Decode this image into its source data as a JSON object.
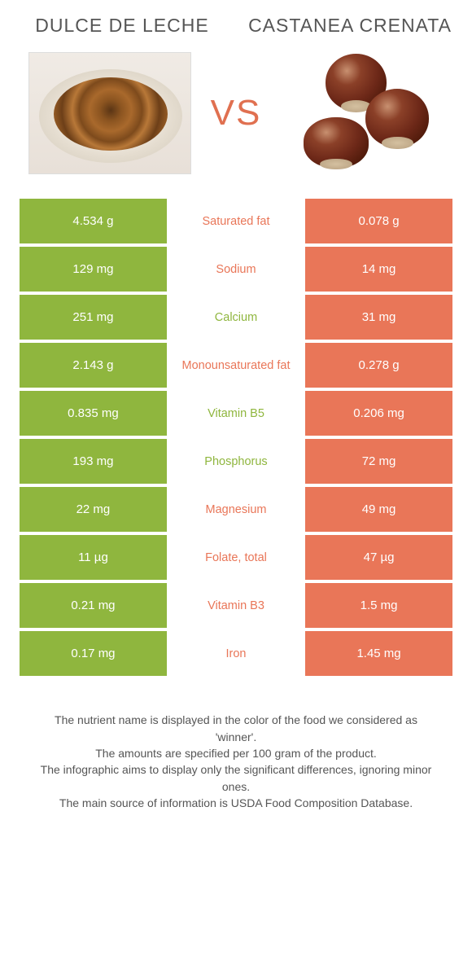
{
  "colors": {
    "green": "#8fb63e",
    "coral": "#e97658",
    "vs": "#e07050"
  },
  "header": {
    "left": "DULCE DE LECHE",
    "right": "CASTANEA CRENATA",
    "vs": "VS"
  },
  "rows": [
    {
      "left": "4.534 g",
      "label": "Saturated fat",
      "right": "0.078 g",
      "winner": "right"
    },
    {
      "left": "129 mg",
      "label": "Sodium",
      "right": "14 mg",
      "winner": "right"
    },
    {
      "left": "251 mg",
      "label": "Calcium",
      "right": "31 mg",
      "winner": "left"
    },
    {
      "left": "2.143 g",
      "label": "Monounsaturated fat",
      "right": "0.278 g",
      "winner": "right"
    },
    {
      "left": "0.835 mg",
      "label": "Vitamin B5",
      "right": "0.206 mg",
      "winner": "left"
    },
    {
      "left": "193 mg",
      "label": "Phosphorus",
      "right": "72 mg",
      "winner": "left"
    },
    {
      "left": "22 mg",
      "label": "Magnesium",
      "right": "49 mg",
      "winner": "right"
    },
    {
      "left": "11 µg",
      "label": "Folate, total",
      "right": "47 µg",
      "winner": "right"
    },
    {
      "left": "0.21 mg",
      "label": "Vitamin B3",
      "right": "1.5 mg",
      "winner": "right"
    },
    {
      "left": "0.17 mg",
      "label": "Iron",
      "right": "1.45 mg",
      "winner": "right"
    }
  ],
  "footer": {
    "line1": "The nutrient name is displayed in the color of the food we considered as 'winner'.",
    "line2": "The amounts are specified per 100 gram of the product.",
    "line3": "The infographic aims to display only the significant differences, ignoring minor ones.",
    "line4": "The main source of information is USDA Food Composition Database."
  }
}
